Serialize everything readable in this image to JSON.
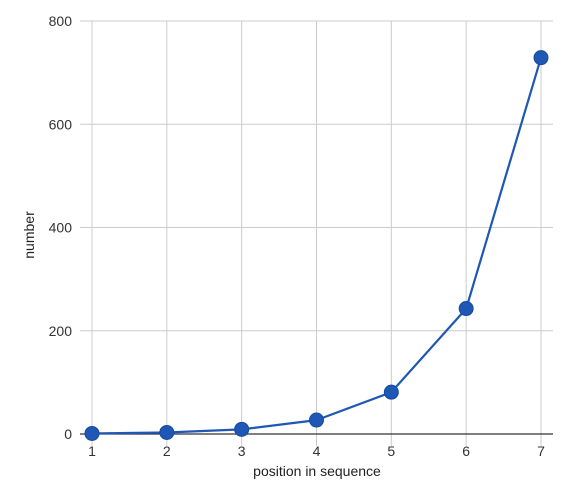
{
  "chart_data": {
    "type": "line",
    "title": "",
    "xlabel": "position in sequence",
    "ylabel": "number",
    "x": [
      1,
      2,
      3,
      4,
      5,
      6,
      7
    ],
    "xlim": [
      1,
      7
    ],
    "ylim": [
      0,
      800
    ],
    "x_ticks": [
      "1",
      "2",
      "3",
      "4",
      "5",
      "6",
      "7"
    ],
    "y_ticks": [
      "0",
      "200",
      "400",
      "600",
      "800"
    ],
    "grid": true,
    "legend": "none",
    "series": [
      {
        "values": [
          1,
          3,
          9,
          27,
          81,
          243,
          729
        ],
        "color": "#1f57b5",
        "marker": "circle"
      }
    ]
  }
}
